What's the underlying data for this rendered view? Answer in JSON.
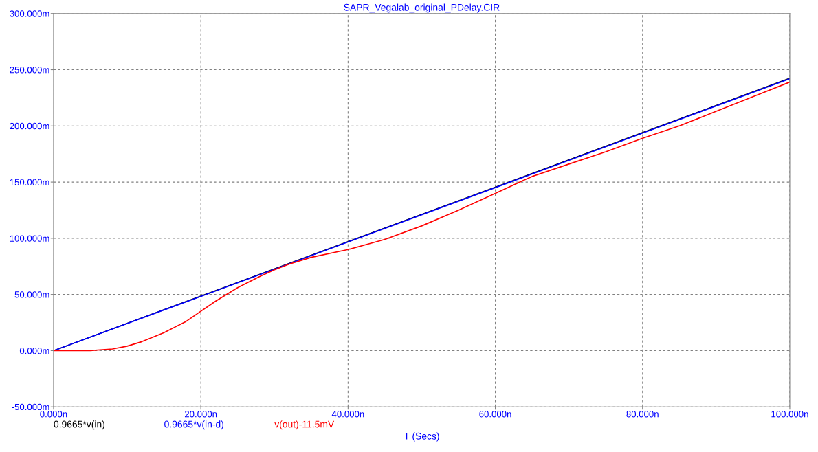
{
  "chart_data": {
    "type": "line",
    "title": "SAPR_Vegalab_original_PDelay.CIR",
    "xlabel": "T (Secs)",
    "x": [
      0,
      20,
      40,
      60,
      80,
      100
    ],
    "series": [
      {
        "name": "0.9665*v(in)",
        "color": "#000000",
        "values": [
          0,
          48.5,
          97,
          145.5,
          194,
          242.5
        ]
      },
      {
        "name": "0.9665*v(in-d)",
        "color": "#0000ff",
        "values": [
          0,
          48.3,
          96.7,
          145.1,
          193.6,
          242
        ]
      },
      {
        "name": "v(out)-11.5mV",
        "color": "#ff0000",
        "x": [
          0,
          5,
          8,
          10,
          12,
          15,
          18,
          20,
          22,
          25,
          28,
          30,
          32,
          35,
          40,
          45,
          50,
          55,
          60,
          65,
          70,
          75,
          80,
          85,
          90,
          95,
          100
        ],
        "values": [
          0,
          0,
          1.5,
          4,
          8,
          16,
          26,
          35,
          44,
          56,
          66,
          72,
          77,
          83,
          90,
          99,
          111,
          125,
          140,
          155,
          166,
          177,
          189,
          200,
          213,
          226,
          239
        ]
      }
    ],
    "xlim": [
      0,
      100
    ],
    "ylim": [
      -50,
      300
    ],
    "xticks": [
      {
        "value": 0,
        "label": "0.000n"
      },
      {
        "value": 20,
        "label": "20.000n"
      },
      {
        "value": 40,
        "label": "40.000n"
      },
      {
        "value": 60,
        "label": "60.000n"
      },
      {
        "value": 80,
        "label": "80.000n"
      },
      {
        "value": 100,
        "label": "100.000n"
      }
    ],
    "yticks": [
      {
        "value": -50,
        "label": "-50.000m"
      },
      {
        "value": 0,
        "label": "0.000m"
      },
      {
        "value": 50,
        "label": "50.000m"
      },
      {
        "value": 100,
        "label": "100.000m"
      },
      {
        "value": 150,
        "label": "150.000m"
      },
      {
        "value": 200,
        "label": "200.000m"
      },
      {
        "value": 250,
        "label": "250.000m"
      },
      {
        "value": 300,
        "label": "300.000m"
      }
    ],
    "grid": true,
    "legend": "bottom",
    "line_style": "solid"
  }
}
